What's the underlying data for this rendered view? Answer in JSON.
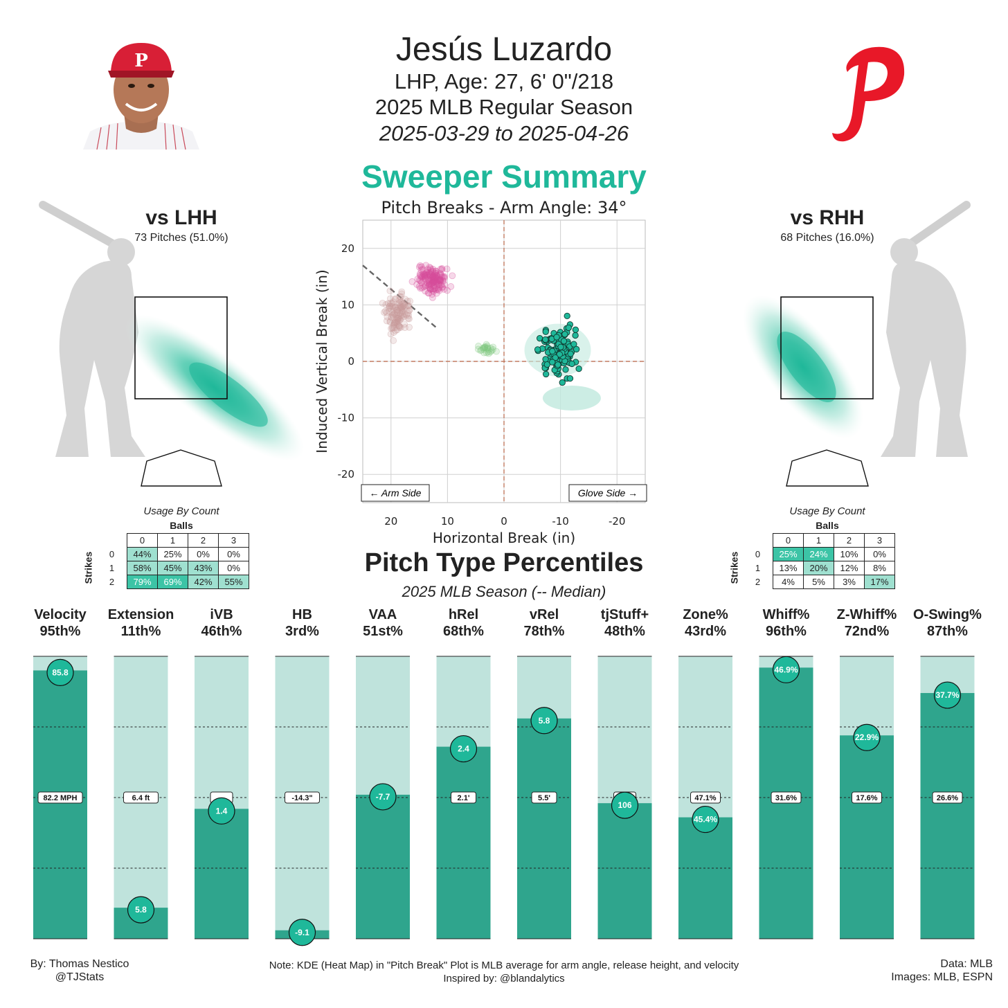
{
  "header": {
    "name": "Jesús Luzardo",
    "line1": "LHP, Age: 27, 6' 0\"/218",
    "line2": "2025 MLB Regular Season",
    "line3": "2025-03-29 to 2025-04-26",
    "pitch_title": "Sweeper Summary",
    "colors": {
      "accent": "#1fb89a",
      "phillies_red": "#e81828"
    }
  },
  "lhh": {
    "title": "vs LHH",
    "pitches": "73 Pitches (51.0%)",
    "usage_title": "Usage By Count",
    "balls_label": "Balls",
    "strikes_label": "Strikes",
    "ball_cols": [
      "0",
      "1",
      "2",
      "3"
    ],
    "rows": [
      {
        "strikes": "0",
        "cells": [
          "44%",
          "25%",
          "0%",
          "0%"
        ],
        "shade": [
          1,
          0,
          0,
          0
        ]
      },
      {
        "strikes": "1",
        "cells": [
          "58%",
          "45%",
          "43%",
          "0%"
        ],
        "shade": [
          1,
          1,
          1,
          0
        ]
      },
      {
        "strikes": "2",
        "cells": [
          "79%",
          "69%",
          "42%",
          "55%"
        ],
        "shade": [
          2,
          2,
          1,
          1
        ]
      }
    ]
  },
  "rhh": {
    "title": "vs RHH",
    "pitches": "68 Pitches (16.0%)",
    "usage_title": "Usage By Count",
    "balls_label": "Balls",
    "strikes_label": "Strikes",
    "ball_cols": [
      "0",
      "1",
      "2",
      "3"
    ],
    "rows": [
      {
        "strikes": "0",
        "cells": [
          "25%",
          "24%",
          "10%",
          "0%"
        ],
        "shade": [
          2,
          2,
          0,
          0
        ]
      },
      {
        "strikes": "1",
        "cells": [
          "13%",
          "20%",
          "12%",
          "8%"
        ],
        "shade": [
          0,
          1,
          0,
          0
        ]
      },
      {
        "strikes": "2",
        "cells": [
          "4%",
          "5%",
          "3%",
          "17%"
        ],
        "shade": [
          0,
          0,
          0,
          1
        ]
      }
    ]
  },
  "percentiles": {
    "title": "Pitch Type Percentiles",
    "subtitle": "2025 MLB Season (-- Median)"
  },
  "chart_data": [
    {
      "type": "scatter",
      "title": "Pitch Breaks - Arm Angle: 34°",
      "xlabel": "Horizontal Break (in)",
      "ylabel": "Induced Vertical Break (in)",
      "xlim": [
        25,
        -25
      ],
      "ylim": [
        -25,
        25
      ],
      "xticks": [
        20,
        10,
        0,
        -10,
        -20
      ],
      "yticks": [
        20,
        10,
        0,
        -10,
        -20
      ],
      "x_tick_labels": [
        "20",
        "10",
        "0",
        "-10",
        "-20"
      ],
      "y_tick_labels": [
        "20",
        "10",
        "0",
        "-10",
        "-20"
      ],
      "grid": true,
      "arm_side_label": "← Arm Side",
      "glove_side_label": "Glove Side →",
      "arm_angle_line": {
        "x": [
          25,
          12
        ],
        "y": [
          17,
          6
        ]
      },
      "series": [
        {
          "color": "#d64d9b",
          "center": [
            13,
            14.5
          ],
          "spread": [
            2.2,
            1.8
          ],
          "n": 150,
          "role": "other-pitch"
        },
        {
          "color": "#c89a9a",
          "center": [
            19,
            8.5
          ],
          "spread": [
            2,
            2.8
          ],
          "n": 120,
          "role": "other-pitch"
        },
        {
          "color": "#7fc77f",
          "center": [
            3,
            2.2
          ],
          "spread": [
            1.5,
            0.8
          ],
          "n": 25,
          "role": "other-pitch"
        },
        {
          "color": "#1fb89a",
          "center": [
            -9.5,
            1.5
          ],
          "spread": [
            2.5,
            3.5
          ],
          "n": 140,
          "role": "sweeper"
        }
      ]
    },
    {
      "type": "bar",
      "categories": [
        "Velocity",
        "Extension",
        "iVB",
        "HB",
        "VAA",
        "hRel",
        "vRel",
        "tjStuff+",
        "Zone%",
        "Whiff%",
        "Z-Whiff%",
        "O-Swing%"
      ],
      "percentile_labels": [
        "95th%",
        "11th%",
        "46th%",
        "3rd%",
        "51st%",
        "68th%",
        "78th%",
        "48th%",
        "43rd%",
        "96th%",
        "72nd%",
        "87th%"
      ],
      "percentiles": [
        95,
        11,
        46,
        3,
        51,
        68,
        78,
        48,
        43,
        96,
        72,
        87
      ],
      "values": [
        "85.8",
        "5.8",
        "1.4",
        "-9.1",
        "-7.7",
        "2.4",
        "5.8",
        "106",
        "45.4%",
        "46.9%",
        "22.9%",
        "37.7%"
      ],
      "medians": [
        "82.2 MPH",
        "6.4 ft",
        "",
        "-14.3\"",
        "",
        "2.1'",
        "5.5'",
        "",
        "47.1%",
        "31.6%",
        "17.6%",
        "26.6%"
      ],
      "ylim": [
        0,
        100
      ],
      "colors": {
        "fill": "#2fa58d",
        "background": "#bfe3dc",
        "marker": "#1fb89a"
      }
    }
  ],
  "footer": {
    "left1": "By: Thomas Nestico",
    "left2": "@TJStats",
    "center1": "Note: KDE (Heat Map) in \"Pitch Break\" Plot is MLB average for arm angle, release height, and velocity",
    "center2": "Inspired by: @blandalytics",
    "right1": "Data: MLB",
    "right2": "Images: MLB, ESPN"
  }
}
